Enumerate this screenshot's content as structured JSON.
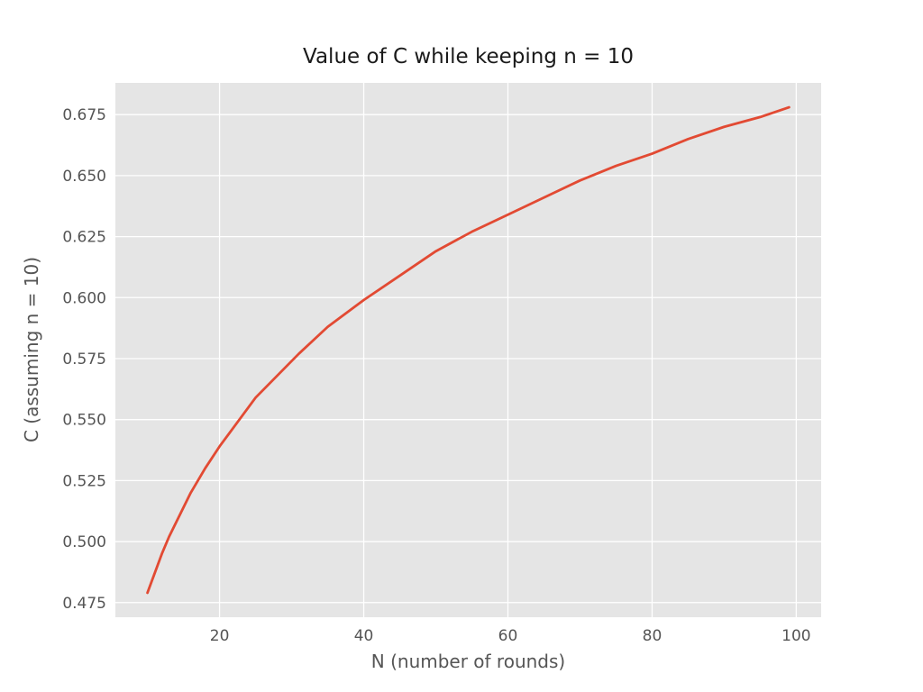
{
  "figure": {
    "title": "Value of C while keeping n = 10",
    "xlabel": "N (number of rounds)",
    "ylabel": "C (assuming n = 10)"
  },
  "chart_data": {
    "type": "line",
    "title": "Value of C while keeping n = 10",
    "xlabel": "N (number of rounds)",
    "ylabel": "C (assuming n = 10)",
    "x": [
      10,
      11,
      12,
      13,
      14,
      15,
      16,
      18,
      20,
      22,
      25,
      28,
      31,
      35,
      40,
      45,
      50,
      55,
      60,
      65,
      70,
      75,
      80,
      85,
      90,
      95,
      99
    ],
    "y": [
      0.479,
      0.487,
      0.495,
      0.502,
      0.508,
      0.514,
      0.52,
      0.53,
      0.539,
      0.547,
      0.559,
      0.568,
      0.577,
      0.588,
      0.599,
      0.609,
      0.619,
      0.627,
      0.634,
      0.641,
      0.648,
      0.654,
      0.659,
      0.665,
      0.67,
      0.674,
      0.678
    ],
    "xlim": [
      5.55,
      103.45
    ],
    "ylim": [
      0.469,
      0.688
    ],
    "x_ticks": [
      "20",
      "40",
      "60",
      "80",
      "100"
    ],
    "y_ticks": [
      "0.475",
      "0.500",
      "0.525",
      "0.550",
      "0.575",
      "0.600",
      "0.625",
      "0.650",
      "0.675"
    ],
    "grid": true,
    "style": "ggplot",
    "colors": {
      "line": "#E24A33",
      "panel": "#E5E5E5",
      "grid": "#FFFFFF",
      "tick_label": "#555555",
      "axis_label": "#555555",
      "title": "#1a1a1a",
      "figure_bg": "#FFFFFF"
    }
  }
}
